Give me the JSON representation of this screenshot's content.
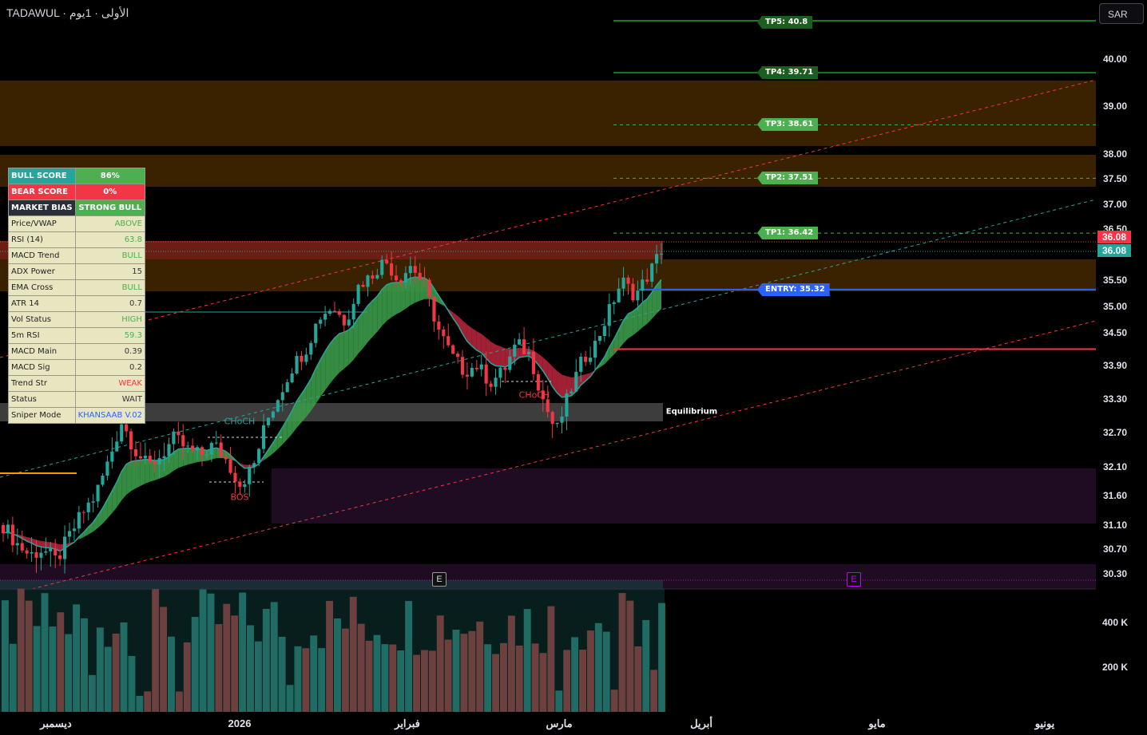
{
  "header": {
    "title": "TADAWUL · الأولى · 1يوم"
  },
  "currency_button": "SAR",
  "colors": {
    "up": "#26a69a",
    "down": "#f23645",
    "tp": "#4caf50",
    "entry": "#2962ff",
    "bg": "#000000"
  },
  "chart_data": {
    "type": "candlestick",
    "xlabel": "",
    "ylabel": "",
    "x_ticks": [
      "ديسمبر",
      "2026",
      "فبراير",
      "مارس",
      "أبريل",
      "مايو",
      "يونيو"
    ],
    "y_ticks": [
      "40.00",
      "39.00",
      "38.00",
      "37.50",
      "37.00",
      "36.50",
      "35.50",
      "35.00",
      "34.50",
      "33.90",
      "33.30",
      "32.70",
      "32.10",
      "31.60",
      "31.10",
      "30.70",
      "30.30"
    ],
    "ylim": [
      30.1,
      41.0
    ],
    "volume_ticks": [
      "400 K",
      "200 K"
    ],
    "last_price": "36.08",
    "last_price_2": "36.08",
    "close_path": [
      31.1,
      30.8,
      30.6,
      30.7,
      30.5,
      30.9,
      31.3,
      31.6,
      32.2,
      32.9,
      32.4,
      32.1,
      32.3,
      32.6,
      32.4,
      32.3,
      32.5,
      32.2,
      31.8,
      32.1,
      32.9,
      33.4,
      33.9,
      34.2,
      34.8,
      35.0,
      34.7,
      35.4,
      35.6,
      35.9,
      35.5,
      35.8,
      35.4,
      34.6,
      34.1,
      33.8,
      33.9,
      33.6,
      33.8,
      34.3,
      34.1,
      33.3,
      32.7,
      33.4,
      34.0,
      34.3,
      34.9,
      35.5,
      35.2,
      35.6,
      36.1
    ],
    "levels": {
      "tp5": "TP5: 40.8",
      "tp4": "TP4: 39.71",
      "tp3": "TP3: 38.61",
      "tp2": "TP2: 37.51",
      "tp1": "TP1: 36.42",
      "entry": "ENTRY: 35.32"
    },
    "level_values": {
      "tp5": 40.8,
      "tp4": 39.71,
      "tp3": 38.61,
      "tp2": 37.51,
      "tp1": 36.42,
      "entry": 35.32,
      "stop": 34.2
    },
    "annotations": [
      "Equilibrium",
      "CHoCH",
      "CHoCH",
      "BOS",
      "mium"
    ]
  },
  "panel": {
    "rows": [
      {
        "k": "BULL SCORE",
        "v": "86%"
      },
      {
        "k": "BEAR SCORE",
        "v": "0%"
      },
      {
        "k": "MARKET BIAS",
        "v": "STRONG BULL"
      },
      {
        "k": "Price/VWAP",
        "v": "ABOVE"
      },
      {
        "k": "RSI (14)",
        "v": "63.8"
      },
      {
        "k": "MACD Trend",
        "v": "BULL"
      },
      {
        "k": "ADX Power",
        "v": "15"
      },
      {
        "k": "EMA Cross",
        "v": "BULL"
      },
      {
        "k": "ATR 14",
        "v": "0.7"
      },
      {
        "k": "Vol Status",
        "v": "HIGH"
      },
      {
        "k": "5m RSI",
        "v": "59.3"
      },
      {
        "k": "MACD Main",
        "v": "0.39"
      },
      {
        "k": "MACD Sig",
        "v": "0.2"
      },
      {
        "k": "Trend Str",
        "v": "WEAK"
      },
      {
        "k": "Status",
        "v": "WAIT"
      },
      {
        "k": "Sniper Mode",
        "v": "KHANSAAB V.02"
      }
    ]
  },
  "markers": {
    "e1": "E",
    "e2": "E"
  }
}
